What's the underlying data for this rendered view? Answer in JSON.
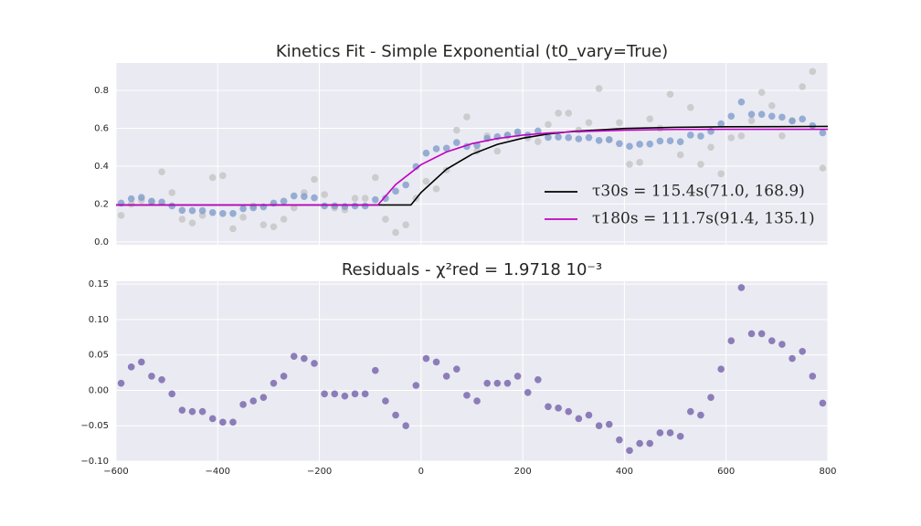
{
  "chart_data": [
    {
      "type": "scatter",
      "title": "Kinetics Fit - Simple Exponential (t0_vary=True)",
      "xlim": [
        -600,
        800
      ],
      "ylim": [
        -0.015,
        0.945
      ],
      "yticks": [
        {
          "value": 0,
          "label": "0.0"
        },
        0.2,
        0.4,
        0.6,
        0.8
      ],
      "grid": true,
      "legend": "lower right",
      "series": [
        {
          "type": "scatter",
          "color": "#c4c4c4",
          "x": [
            -590,
            -570,
            -550,
            -530,
            -510,
            -490,
            -470,
            -450,
            -430,
            -410,
            -390,
            -370,
            -350,
            -330,
            -310,
            -290,
            -270,
            -250,
            -230,
            -210,
            -190,
            -170,
            -150,
            -130,
            -110,
            -90,
            -70,
            -50,
            -30,
            -10,
            10,
            30,
            50,
            70,
            90,
            110,
            130,
            150,
            170,
            190,
            210,
            230,
            250,
            270,
            290,
            310,
            330,
            350,
            370,
            390,
            410,
            430,
            450,
            470,
            490,
            510,
            530,
            550,
            570,
            590,
            610,
            630,
            650,
            670,
            690,
            710,
            730,
            750,
            770,
            790
          ],
          "values": [
            0.14,
            0.2,
            0.22,
            0.21,
            0.37,
            0.26,
            0.12,
            0.1,
            0.14,
            0.34,
            0.35,
            0.07,
            0.13,
            0.19,
            0.09,
            0.08,
            0.12,
            0.18,
            0.26,
            0.33,
            0.25,
            0.18,
            0.17,
            0.23,
            0.23,
            0.34,
            0.12,
            0.05,
            0.09,
            0.23,
            0.32,
            0.28,
            0.38,
            0.59,
            0.66,
            0.48,
            0.56,
            0.48,
            0.56,
            0.57,
            0.55,
            0.53,
            0.62,
            0.68,
            0.68,
            0.59,
            0.63,
            0.81,
            0.54,
            0.63,
            0.41,
            0.42,
            0.65,
            0.6,
            0.78,
            0.46,
            0.71,
            0.41,
            0.5,
            0.36,
            0.55,
            0.56,
            0.64,
            0.79,
            0.72,
            0.56,
            0.64,
            0.82,
            0.9,
            0.39
          ]
        },
        {
          "type": "scatter",
          "color": "#7f9ccc",
          "x": [
            -590,
            -570,
            -550,
            -530,
            -510,
            -490,
            -470,
            -450,
            -430,
            -410,
            -390,
            -370,
            -350,
            -330,
            -310,
            -290,
            -270,
            -250,
            -230,
            -210,
            -190,
            -170,
            -150,
            -130,
            -110,
            -90,
            -70,
            -50,
            -30,
            -10,
            10,
            30,
            50,
            70,
            90,
            110,
            130,
            150,
            170,
            190,
            210,
            230,
            250,
            270,
            290,
            310,
            330,
            350,
            370,
            390,
            410,
            430,
            450,
            470,
            490,
            510,
            530,
            550,
            570,
            590,
            610,
            630,
            650,
            670,
            690,
            710,
            730,
            750,
            770,
            790
          ],
          "values": [
            0.205,
            0.228,
            0.235,
            0.215,
            0.21,
            0.19,
            0.167,
            0.165,
            0.165,
            0.155,
            0.15,
            0.15,
            0.175,
            0.18,
            0.185,
            0.205,
            0.215,
            0.243,
            0.24,
            0.233,
            0.19,
            0.19,
            0.187,
            0.19,
            0.19,
            0.223,
            0.23,
            0.268,
            0.301,
            0.398,
            0.469,
            0.492,
            0.495,
            0.525,
            0.504,
            0.51,
            0.547,
            0.556,
            0.564,
            0.581,
            0.564,
            0.586,
            0.552,
            0.554,
            0.551,
            0.544,
            0.551,
            0.536,
            0.54,
            0.519,
            0.505,
            0.516,
            0.517,
            0.533,
            0.534,
            0.529,
            0.564,
            0.559,
            0.584,
            0.624,
            0.664,
            0.739,
            0.674,
            0.674,
            0.664,
            0.659,
            0.639,
            0.649,
            0.614,
            0.576
          ]
        },
        {
          "type": "line",
          "name": "τ30s = 115.4s(71.0, 168.9)",
          "color": "#000000",
          "x": [
            -600,
            -20,
            0,
            50,
            100,
            150,
            200,
            250,
            300,
            400,
            500,
            600,
            700,
            800
          ],
          "values": [
            0.195,
            0.195,
            0.261,
            0.384,
            0.463,
            0.515,
            0.548,
            0.57,
            0.584,
            0.599,
            0.605,
            0.608,
            0.609,
            0.61
          ]
        },
        {
          "type": "line",
          "name": "τ180s = 111.7s(91.4, 135.1)",
          "color": "#c000c0",
          "x": [
            -600,
            -85,
            -50,
            0,
            50,
            100,
            150,
            200,
            250,
            300,
            400,
            500,
            600,
            700,
            800
          ],
          "values": [
            0.195,
            0.195,
            0.303,
            0.408,
            0.475,
            0.519,
            0.546,
            0.564,
            0.575,
            0.582,
            0.59,
            0.594,
            0.595,
            0.595,
            0.595
          ]
        }
      ]
    },
    {
      "type": "scatter",
      "title": "Residuals - χ²red = 1.9718 10⁻³",
      "xlim": [
        -600,
        800
      ],
      "ylim": [
        -0.1,
        0.154
      ],
      "xticks": [
        {
          "value": -600,
          "label": "−600"
        },
        {
          "value": -400,
          "label": "−400"
        },
        {
          "value": -200,
          "label": "−200"
        },
        0,
        200,
        400,
        600,
        800
      ],
      "yticks": [
        {
          "value": -0.1,
          "label": "−0.10"
        },
        {
          "value": -0.05,
          "label": "−0.05"
        },
        {
          "value": 0,
          "label": "0.00"
        },
        0.05,
        {
          "value": 0.1,
          "label": "0.10"
        },
        0.15
      ],
      "grid": true,
      "series": [
        {
          "type": "scatter",
          "color": "#7461aa",
          "x": [
            -590,
            -570,
            -550,
            -530,
            -510,
            -490,
            -470,
            -450,
            -430,
            -410,
            -390,
            -370,
            -350,
            -330,
            -310,
            -290,
            -270,
            -250,
            -230,
            -210,
            -190,
            -170,
            -150,
            -130,
            -110,
            -90,
            -70,
            -50,
            -30,
            -10,
            10,
            30,
            50,
            70,
            90,
            110,
            130,
            150,
            170,
            190,
            210,
            230,
            250,
            270,
            290,
            310,
            330,
            350,
            370,
            390,
            410,
            430,
            450,
            470,
            490,
            510,
            530,
            550,
            570,
            590,
            610,
            630,
            650,
            670,
            690,
            710,
            730,
            750,
            770,
            790
          ],
          "values": [
            0.01,
            0.033,
            0.04,
            0.02,
            0.015,
            -0.005,
            -0.028,
            -0.03,
            -0.03,
            -0.04,
            -0.045,
            -0.045,
            -0.02,
            -0.015,
            -0.01,
            0.01,
            0.02,
            0.048,
            0.045,
            0.038,
            -0.005,
            -0.005,
            -0.008,
            -0.005,
            -0.005,
            0.028,
            -0.015,
            -0.035,
            -0.05,
            0.007,
            0.045,
            0.04,
            0.02,
            0.03,
            -0.007,
            -0.015,
            0.01,
            0.01,
            0.01,
            0.02,
            -0.003,
            0.015,
            -0.023,
            -0.025,
            -0.03,
            -0.04,
            -0.035,
            -0.05,
            -0.048,
            -0.07,
            -0.085,
            -0.075,
            -0.075,
            -0.06,
            -0.06,
            -0.065,
            -0.03,
            -0.035,
            -0.01,
            0.03,
            0.07,
            0.145,
            0.08,
            0.08,
            0.07,
            0.065,
            0.045,
            0.055,
            0.02,
            -0.018
          ]
        }
      ]
    }
  ]
}
